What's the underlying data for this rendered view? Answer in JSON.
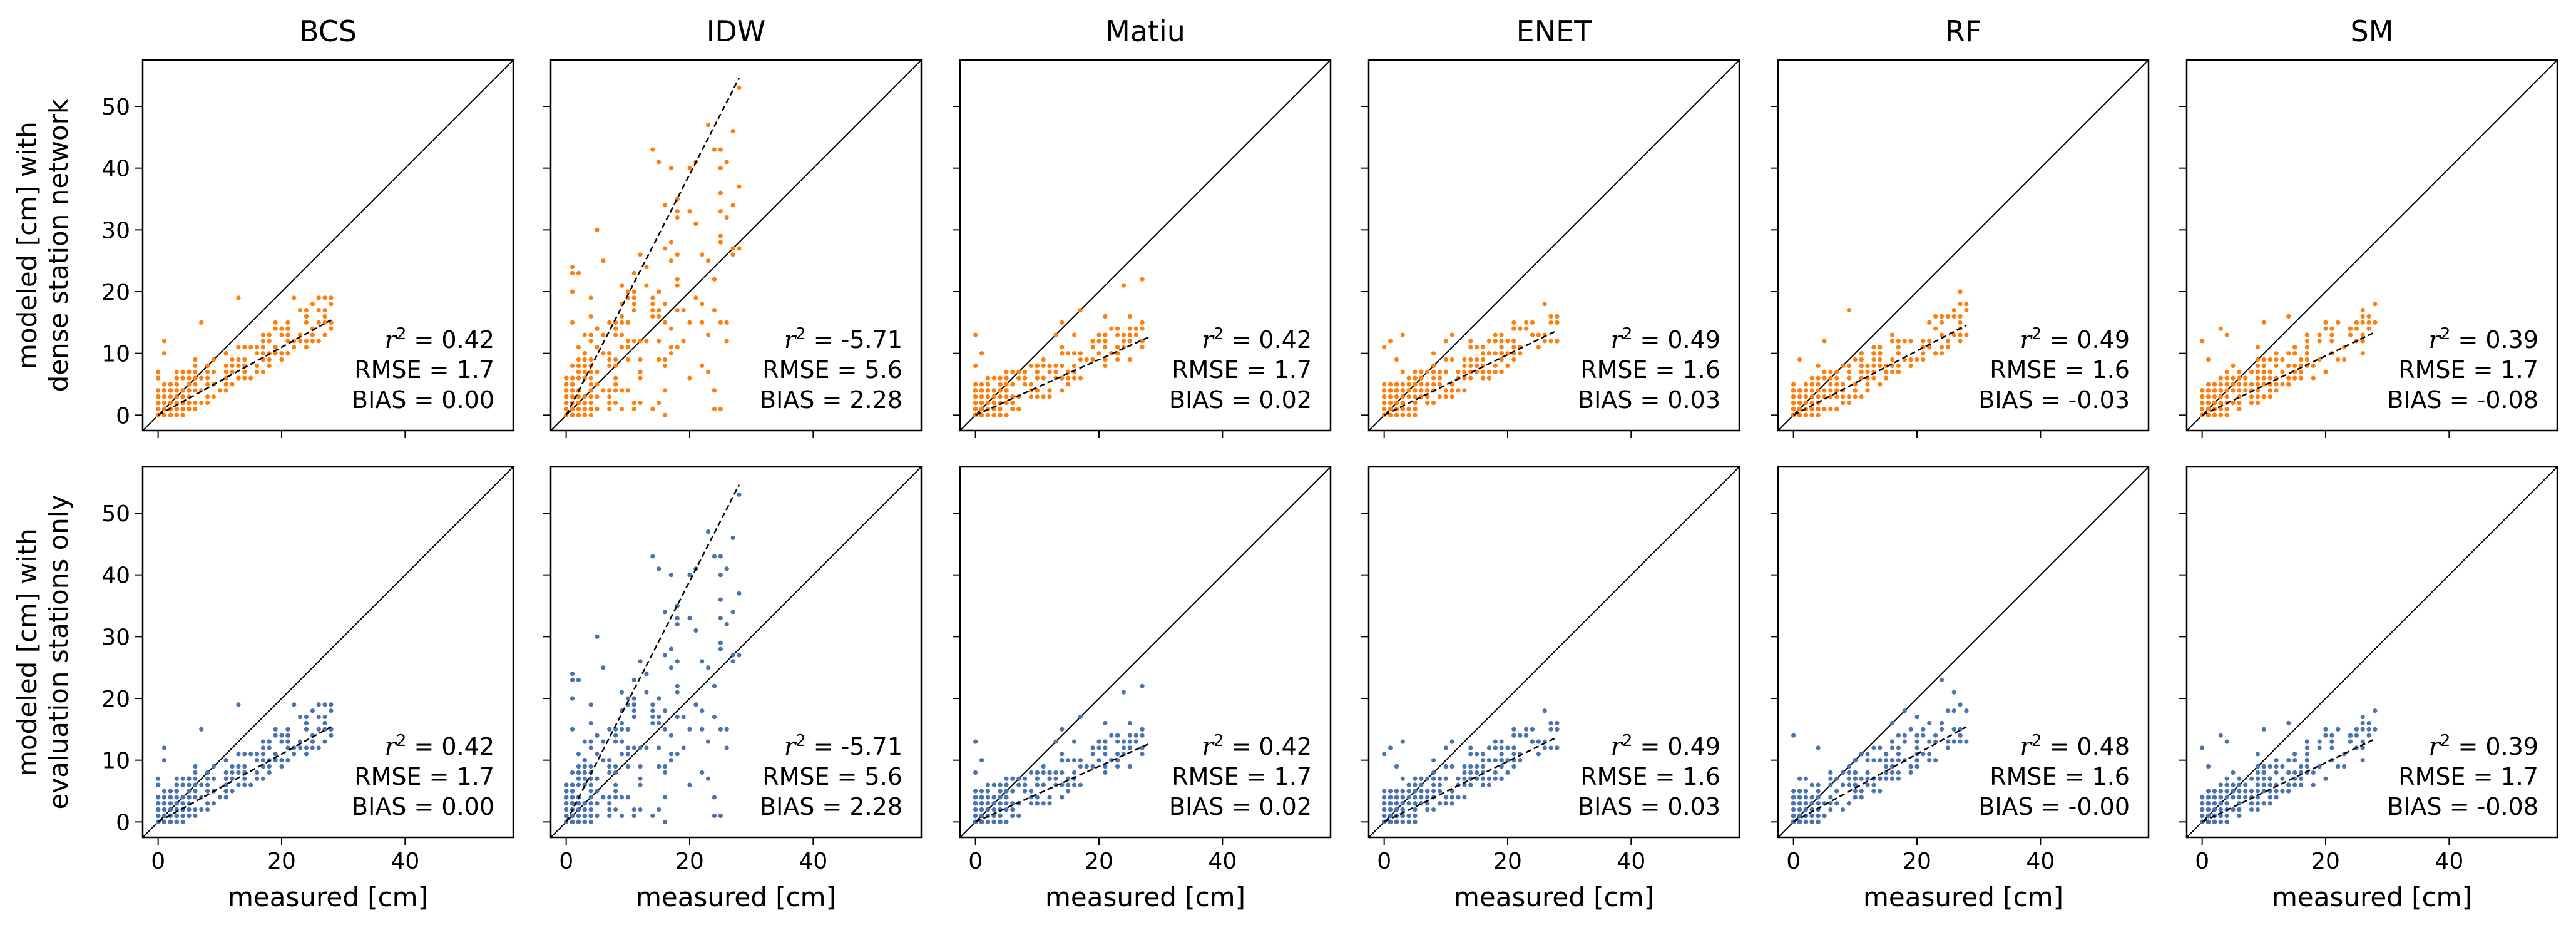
{
  "figure": {
    "row_labels": [
      [
        "modeled [cm] with",
        "dense station network"
      ],
      [
        "modeled [cm] with",
        "evaluation stations only"
      ]
    ],
    "xlabel": "measured [cm]",
    "ticks": [
      0,
      10,
      20,
      30,
      40,
      50
    ],
    "x_ticks": [
      0,
      20,
      40
    ],
    "lim": [
      -2.5,
      57.5
    ],
    "stat_labels": {
      "r2": "r² = ",
      "rmse": "RMSE = ",
      "bias": "BIAS = "
    },
    "colors": {
      "dense": "#ff7f0e",
      "eval": "#4c72b0",
      "identity": "#000000",
      "fit": "#000000"
    },
    "lines": [
      "identity line",
      "regression fit (dashed)"
    ]
  },
  "chart_data": [
    {
      "type": "scatter",
      "row": 0,
      "col": 0,
      "title": "BCS",
      "series_color": "#ff7f0e",
      "r2": "0.42",
      "rmse": "1.7",
      "bias": "0.00",
      "fit": {
        "slope": 0.55,
        "intercept": 0.0,
        "x_end": 28
      },
      "xlim": [
        -2.5,
        57.5
      ],
      "ylim": [
        -2.5,
        57.5
      ],
      "seed": 11
    },
    {
      "type": "scatter",
      "row": 0,
      "col": 1,
      "title": "IDW",
      "series_color": "#ff7f0e",
      "r2": "-5.71",
      "rmse": "5.6",
      "bias": "2.28",
      "fit": {
        "slope": 1.95,
        "intercept": 0.0,
        "x_end": 28
      },
      "xlim": [
        -2.5,
        57.5
      ],
      "ylim": [
        -2.5,
        57.5
      ],
      "seed": 22
    },
    {
      "type": "scatter",
      "row": 0,
      "col": 2,
      "title": "Matiu",
      "series_color": "#ff7f0e",
      "r2": "0.42",
      "rmse": "1.7",
      "bias": "0.02",
      "fit": {
        "slope": 0.45,
        "intercept": 0.0,
        "x_end": 28
      },
      "xlim": [
        -2.5,
        57.5
      ],
      "ylim": [
        -2.5,
        57.5
      ],
      "seed": 33
    },
    {
      "type": "scatter",
      "row": 0,
      "col": 3,
      "title": "ENET",
      "series_color": "#ff7f0e",
      "r2": "0.49",
      "rmse": "1.6",
      "bias": "0.03",
      "fit": {
        "slope": 0.49,
        "intercept": 0.0,
        "x_end": 28
      },
      "xlim": [
        -2.5,
        57.5
      ],
      "ylim": [
        -2.5,
        57.5
      ],
      "seed": 44
    },
    {
      "type": "scatter",
      "row": 0,
      "col": 4,
      "title": "RF",
      "series_color": "#ff7f0e",
      "r2": "0.49",
      "rmse": "1.6",
      "bias": "-0.03",
      "fit": {
        "slope": 0.52,
        "intercept": 0.0,
        "x_end": 28
      },
      "xlim": [
        -2.5,
        57.5
      ],
      "ylim": [
        -2.5,
        57.5
      ],
      "seed": 55
    },
    {
      "type": "scatter",
      "row": 0,
      "col": 5,
      "title": "SM",
      "series_color": "#ff7f0e",
      "r2": "0.39",
      "rmse": "1.7",
      "bias": "-0.08",
      "fit": {
        "slope": 0.48,
        "intercept": 0.0,
        "x_end": 28
      },
      "xlim": [
        -2.5,
        57.5
      ],
      "ylim": [
        -2.5,
        57.5
      ],
      "seed": 66
    },
    {
      "type": "scatter",
      "row": 1,
      "col": 0,
      "title": "",
      "series_color": "#4c72b0",
      "r2": "0.42",
      "rmse": "1.7",
      "bias": "0.00",
      "fit": {
        "slope": 0.55,
        "intercept": 0.0,
        "x_end": 28
      },
      "xlim": [
        -2.5,
        57.5
      ],
      "ylim": [
        -2.5,
        57.5
      ],
      "seed": 11
    },
    {
      "type": "scatter",
      "row": 1,
      "col": 1,
      "title": "",
      "series_color": "#4c72b0",
      "r2": "-5.71",
      "rmse": "5.6",
      "bias": "2.28",
      "fit": {
        "slope": 1.95,
        "intercept": 0.0,
        "x_end": 28
      },
      "xlim": [
        -2.5,
        57.5
      ],
      "ylim": [
        -2.5,
        57.5
      ],
      "seed": 22
    },
    {
      "type": "scatter",
      "row": 1,
      "col": 2,
      "title": "",
      "series_color": "#4c72b0",
      "r2": "0.42",
      "rmse": "1.7",
      "bias": "0.02",
      "fit": {
        "slope": 0.45,
        "intercept": 0.0,
        "x_end": 28
      },
      "xlim": [
        -2.5,
        57.5
      ],
      "ylim": [
        -2.5,
        57.5
      ],
      "seed": 33
    },
    {
      "type": "scatter",
      "row": 1,
      "col": 3,
      "title": "",
      "series_color": "#4c72b0",
      "r2": "0.49",
      "rmse": "1.6",
      "bias": "0.03",
      "fit": {
        "slope": 0.49,
        "intercept": 0.0,
        "x_end": 28
      },
      "xlim": [
        -2.5,
        57.5
      ],
      "ylim": [
        -2.5,
        57.5
      ],
      "seed": 44
    },
    {
      "type": "scatter",
      "row": 1,
      "col": 4,
      "title": "",
      "series_color": "#4c72b0",
      "r2": "0.48",
      "rmse": "1.6",
      "bias": "-0.00",
      "fit": {
        "slope": 0.55,
        "intercept": 0.0,
        "x_end": 28
      },
      "xlim": [
        -2.5,
        57.5
      ],
      "ylim": [
        -2.5,
        57.5
      ],
      "seed": 77
    },
    {
      "type": "scatter",
      "row": 1,
      "col": 5,
      "title": "",
      "series_color": "#4c72b0",
      "r2": "0.39",
      "rmse": "1.7",
      "bias": "-0.08",
      "fit": {
        "slope": 0.48,
        "intercept": 0.0,
        "x_end": 28
      },
      "xlim": [
        -2.5,
        57.5
      ],
      "ylim": [
        -2.5,
        57.5
      ],
      "seed": 66
    }
  ]
}
